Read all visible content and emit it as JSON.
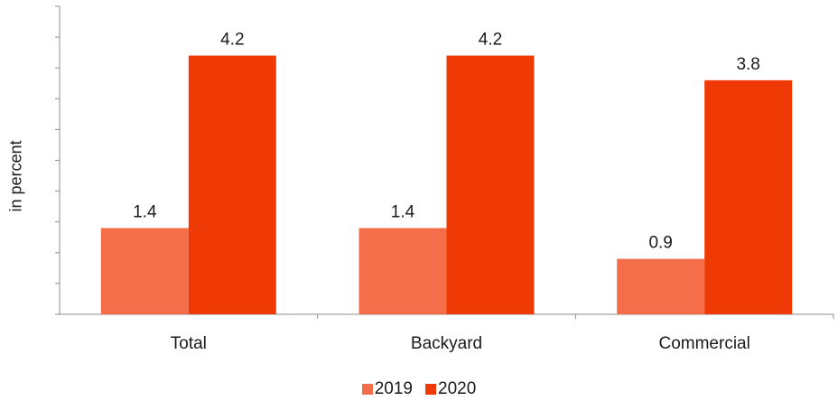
{
  "chart_data": {
    "type": "bar",
    "categories": [
      "Total",
      "Backyard",
      "Commercial"
    ],
    "series": [
      {
        "name": "2019",
        "values": [
          1.4,
          1.4,
          0.9
        ],
        "color": "#F46E4A"
      },
      {
        "name": "2020",
        "values": [
          4.2,
          4.2,
          3.8
        ],
        "color": "#F03A06"
      }
    ],
    "ylabel": "in percent",
    "ylim": [
      0,
      5
    ],
    "ytick_step": 0.5,
    "ytick_labels_shown": false,
    "grid": false,
    "legend_position": "bottom-center"
  }
}
